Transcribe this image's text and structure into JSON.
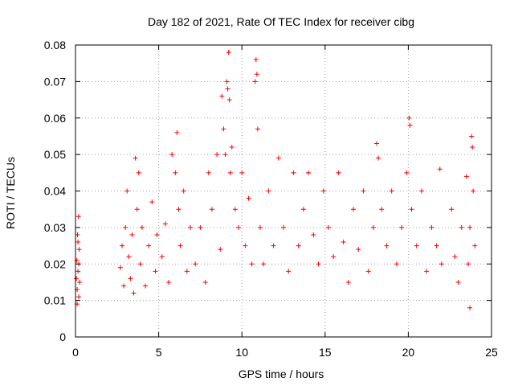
{
  "chart_data": {
    "type": "scatter",
    "title": "Day 182 of 2021, Rate Of TEC Index for receiver cibg",
    "xlabel": "GPS time / hours",
    "ylabel": "ROTI / TECUs",
    "xlim": [
      0,
      25
    ],
    "ylim": [
      0,
      0.08
    ],
    "x_ticks": [
      0,
      5,
      10,
      15,
      20,
      25
    ],
    "x_tick_labels": [
      "0",
      "5",
      "10",
      "15",
      "20",
      "25"
    ],
    "y_ticks": [
      0,
      0.01,
      0.02,
      0.03,
      0.04,
      0.05,
      0.06,
      0.07,
      0.08
    ],
    "y_tick_labels": [
      "0",
      "0.01",
      "0.02",
      "0.03",
      "0.04",
      "0.05",
      "0.06",
      "0.07",
      "0.08"
    ],
    "grid": true,
    "marker": "plus",
    "color": "#ff0000",
    "series": [
      {
        "points": [
          [
            0.05,
            0.016
          ],
          [
            0.08,
            0.021
          ],
          [
            0.1,
            0.013
          ],
          [
            0.12,
            0.028
          ],
          [
            0.15,
            0.018
          ],
          [
            0.18,
            0.033
          ],
          [
            0.2,
            0.011
          ],
          [
            0.22,
            0.024
          ],
          [
            0.25,
            0.015
          ],
          [
            0.1,
            0.009
          ],
          [
            0.2,
            0.02
          ],
          [
            0.15,
            0.026
          ],
          [
            2.7,
            0.019
          ],
          [
            2.8,
            0.025
          ],
          [
            2.9,
            0.014
          ],
          [
            3.0,
            0.03
          ],
          [
            3.1,
            0.04
          ],
          [
            3.2,
            0.022
          ],
          [
            3.3,
            0.016
          ],
          [
            3.4,
            0.028
          ],
          [
            3.5,
            0.012
          ],
          [
            3.6,
            0.049
          ],
          [
            3.7,
            0.035
          ],
          [
            3.8,
            0.045
          ],
          [
            3.9,
            0.02
          ],
          [
            4.0,
            0.03
          ],
          [
            4.2,
            0.014
          ],
          [
            4.4,
            0.025
          ],
          [
            4.6,
            0.037
          ],
          [
            4.8,
            0.018
          ],
          [
            4.9,
            0.028
          ],
          [
            5.2,
            0.022
          ],
          [
            5.4,
            0.031
          ],
          [
            5.6,
            0.015
          ],
          [
            5.8,
            0.05
          ],
          [
            6.0,
            0.045
          ],
          [
            6.1,
            0.056
          ],
          [
            6.2,
            0.035
          ],
          [
            6.3,
            0.025
          ],
          [
            6.5,
            0.04
          ],
          [
            6.7,
            0.018
          ],
          [
            6.9,
            0.03
          ],
          [
            7.2,
            0.02
          ],
          [
            7.5,
            0.03
          ],
          [
            7.8,
            0.015
          ],
          [
            8.0,
            0.045
          ],
          [
            8.2,
            0.035
          ],
          [
            8.5,
            0.05
          ],
          [
            8.7,
            0.024
          ],
          [
            8.8,
            0.066
          ],
          [
            8.9,
            0.057
          ],
          [
            9.0,
            0.05
          ],
          [
            9.1,
            0.07
          ],
          [
            9.15,
            0.068
          ],
          [
            9.2,
            0.078
          ],
          [
            9.25,
            0.065
          ],
          [
            9.3,
            0.045
          ],
          [
            9.4,
            0.052
          ],
          [
            9.6,
            0.035
          ],
          [
            9.8,
            0.03
          ],
          [
            10.0,
            0.045
          ],
          [
            10.2,
            0.025
          ],
          [
            10.4,
            0.038
          ],
          [
            10.6,
            0.02
          ],
          [
            10.8,
            0.07
          ],
          [
            10.85,
            0.076
          ],
          [
            10.9,
            0.072
          ],
          [
            10.95,
            0.057
          ],
          [
            11.1,
            0.03
          ],
          [
            11.3,
            0.02
          ],
          [
            11.6,
            0.04
          ],
          [
            11.9,
            0.025
          ],
          [
            12.2,
            0.049
          ],
          [
            12.5,
            0.03
          ],
          [
            12.8,
            0.018
          ],
          [
            13.1,
            0.045
          ],
          [
            13.4,
            0.025
          ],
          [
            13.7,
            0.035
          ],
          [
            14.0,
            0.045
          ],
          [
            14.3,
            0.028
          ],
          [
            14.6,
            0.02
          ],
          [
            14.9,
            0.04
          ],
          [
            15.2,
            0.03
          ],
          [
            15.5,
            0.022
          ],
          [
            15.8,
            0.045
          ],
          [
            16.1,
            0.026
          ],
          [
            16.4,
            0.015
          ],
          [
            16.7,
            0.035
          ],
          [
            17.0,
            0.024
          ],
          [
            17.3,
            0.04
          ],
          [
            17.6,
            0.018
          ],
          [
            17.9,
            0.03
          ],
          [
            18.1,
            0.053
          ],
          [
            18.2,
            0.049
          ],
          [
            18.4,
            0.035
          ],
          [
            18.7,
            0.025
          ],
          [
            19.0,
            0.04
          ],
          [
            19.3,
            0.02
          ],
          [
            19.6,
            0.03
          ],
          [
            19.9,
            0.045
          ],
          [
            20.05,
            0.06
          ],
          [
            20.1,
            0.058
          ],
          [
            20.2,
            0.035
          ],
          [
            20.5,
            0.025
          ],
          [
            20.8,
            0.04
          ],
          [
            21.1,
            0.018
          ],
          [
            21.4,
            0.03
          ],
          [
            21.7,
            0.025
          ],
          [
            21.9,
            0.046
          ],
          [
            22.0,
            0.02
          ],
          [
            22.6,
            0.035
          ],
          [
            22.8,
            0.022
          ],
          [
            23.0,
            0.015
          ],
          [
            23.2,
            0.03
          ],
          [
            23.5,
            0.044
          ],
          [
            23.6,
            0.02
          ],
          [
            23.7,
            0.03
          ],
          [
            23.8,
            0.055
          ],
          [
            23.85,
            0.052
          ],
          [
            23.9,
            0.04
          ],
          [
            24.0,
            0.025
          ],
          [
            23.7,
            0.008
          ]
        ]
      }
    ]
  }
}
